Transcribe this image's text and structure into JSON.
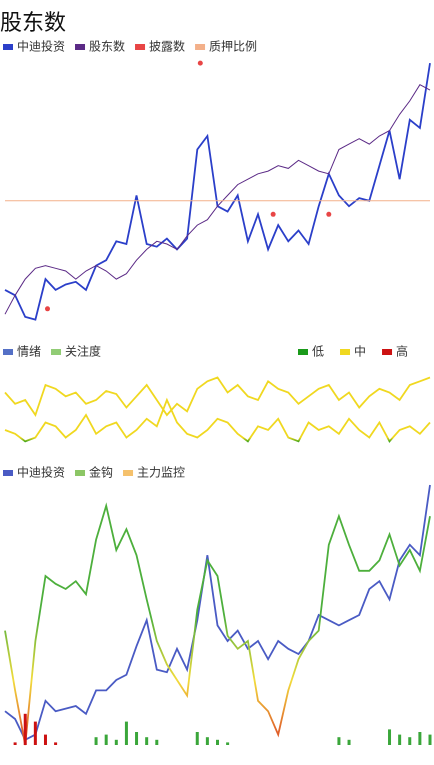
{
  "chart_data": [
    {
      "type": "line",
      "title": "股东数",
      "ylim": [
        0,
        100
      ],
      "series": [
        {
          "name": "中迪投资",
          "color": "#2b3fc9",
          "type": "line",
          "values": [
            13,
            11,
            3,
            2,
            17,
            13,
            15,
            16,
            13,
            22,
            24,
            31,
            30,
            48,
            30,
            29,
            32,
            28,
            32,
            65,
            70,
            44,
            42,
            48,
            31,
            41,
            28,
            37,
            31,
            35,
            30,
            44,
            56,
            48,
            44,
            47,
            46,
            59,
            72,
            54,
            76,
            73,
            97
          ]
        },
        {
          "name": "股东数",
          "color": "#5b2a86",
          "type": "line",
          "values": [
            4,
            11,
            17,
            21,
            22,
            21,
            20,
            17,
            20,
            22,
            20,
            17,
            19,
            24,
            28,
            31,
            30,
            28,
            33,
            37,
            39,
            44,
            48,
            52,
            54,
            56,
            57,
            59,
            58,
            61,
            59,
            57,
            56,
            65,
            67,
            69,
            67,
            70,
            72,
            78,
            83,
            89,
            87
          ]
        },
        {
          "name": "披露数",
          "color": "#e84545",
          "type": "scatter",
          "x": [
            19.3,
            4.2,
            26.5,
            32
          ],
          "values": [
            97,
            6,
            41,
            41
          ]
        },
        {
          "name": "质押比例",
          "color": "#f3b08a",
          "type": "hline",
          "values": [
            46
          ]
        }
      ]
    },
    {
      "type": "line",
      "ylim": [
        0,
        100
      ],
      "series": [
        {
          "name": "情绪",
          "color": "#5470c6",
          "type": "line",
          "values": [
            70,
            55,
            60,
            40,
            80,
            75,
            65,
            70,
            55,
            60,
            72,
            68,
            50,
            65,
            80,
            60,
            40,
            55,
            45,
            75,
            85,
            90,
            70,
            80,
            65,
            60,
            85,
            75,
            70,
            55,
            65,
            75,
            80,
            60,
            70,
            50,
            65,
            75,
            70,
            60,
            80,
            85,
            90
          ]
        },
        {
          "name": "关注度",
          "color": "#91cc75",
          "type": "line",
          "values": [
            20,
            15,
            5,
            10,
            30,
            25,
            10,
            20,
            40,
            15,
            25,
            30,
            10,
            20,
            35,
            25,
            60,
            30,
            15,
            10,
            20,
            35,
            30,
            15,
            5,
            25,
            20,
            35,
            10,
            5,
            30,
            20,
            25,
            15,
            35,
            20,
            10,
            30,
            5,
            20,
            25,
            15,
            30
          ]
        }
      ],
      "visual_map": [
        {
          "label": "低",
          "color": "#1a9a1a"
        },
        {
          "label": "中",
          "color": "#f0d820"
        },
        {
          "label": "高",
          "color": "#cc1111"
        }
      ]
    },
    {
      "type": "line",
      "ylim": [
        0,
        100
      ],
      "series": [
        {
          "name": "中迪投资",
          "color": "#4a5bc4",
          "type": "line",
          "values": [
            13,
            10,
            2,
            4,
            17,
            13,
            14,
            15,
            12,
            21,
            21,
            25,
            27,
            38,
            48,
            29,
            28,
            37,
            29,
            48,
            73,
            46,
            40,
            44,
            37,
            40,
            33,
            40,
            37,
            35,
            40,
            50,
            48,
            46,
            48,
            50,
            60,
            63,
            56,
            71,
            77,
            73,
            100
          ]
        },
        {
          "name": "金钩",
          "color": "#8cc665",
          "type": "line",
          "gradient": [
            "#4daf3c",
            "#f2dc3c",
            "#e0602a"
          ],
          "values": [
            44,
            21,
            0,
            40,
            65,
            62,
            60,
            63,
            58,
            79,
            92,
            75,
            83,
            73,
            56,
            40,
            31,
            25,
            19,
            52,
            71,
            65,
            42,
            37,
            40,
            17,
            13,
            4,
            21,
            33,
            40,
            44,
            77,
            88,
            77,
            67,
            67,
            71,
            81,
            69,
            75,
            67,
            88
          ]
        },
        {
          "name": "主力监控",
          "color": "#f5c16c",
          "type": "bar",
          "bar_colors": [
            "#cc1111",
            "#cc1111",
            "#cc1111",
            "#cc1111",
            "#cc1111",
            "#cc1111",
            "#3aa63a",
            "#3aa63a",
            "#3aa63a",
            "#3aa63a",
            "#3aa63a",
            "#3aa63a",
            "#3aa63a",
            "#3aa63a",
            "#3aa63a",
            "#3aa63a",
            "#3aa63a",
            "#3aa63a",
            "#3aa63a",
            "#3aa63a",
            "#3aa63a",
            "#3aa63a",
            "#3aa63a",
            "#3aa63a",
            "#3aa63a",
            "#3aa63a",
            "#3aa63a",
            "#3aa63a",
            "#3aa63a",
            "#3aa63a",
            "#3aa63a",
            "#3aa63a",
            "#3aa63a",
            "#3aa63a",
            "#3aa63a",
            "#3aa63a",
            "#3aa63a",
            "#3aa63a",
            "#3aa63a",
            "#3aa63a",
            "#3aa63a",
            "#3aa63a",
            "#3aa63a"
          ],
          "values": [
            0,
            1,
            12,
            9,
            4,
            1,
            0,
            0,
            0,
            3,
            4,
            2,
            9,
            5,
            3,
            2,
            0,
            0,
            0,
            5,
            3,
            2,
            1,
            0,
            0,
            0,
            0,
            0,
            0,
            0,
            0,
            0,
            0,
            3,
            2,
            0,
            0,
            0,
            6,
            4,
            3,
            5,
            4
          ]
        }
      ]
    }
  ]
}
